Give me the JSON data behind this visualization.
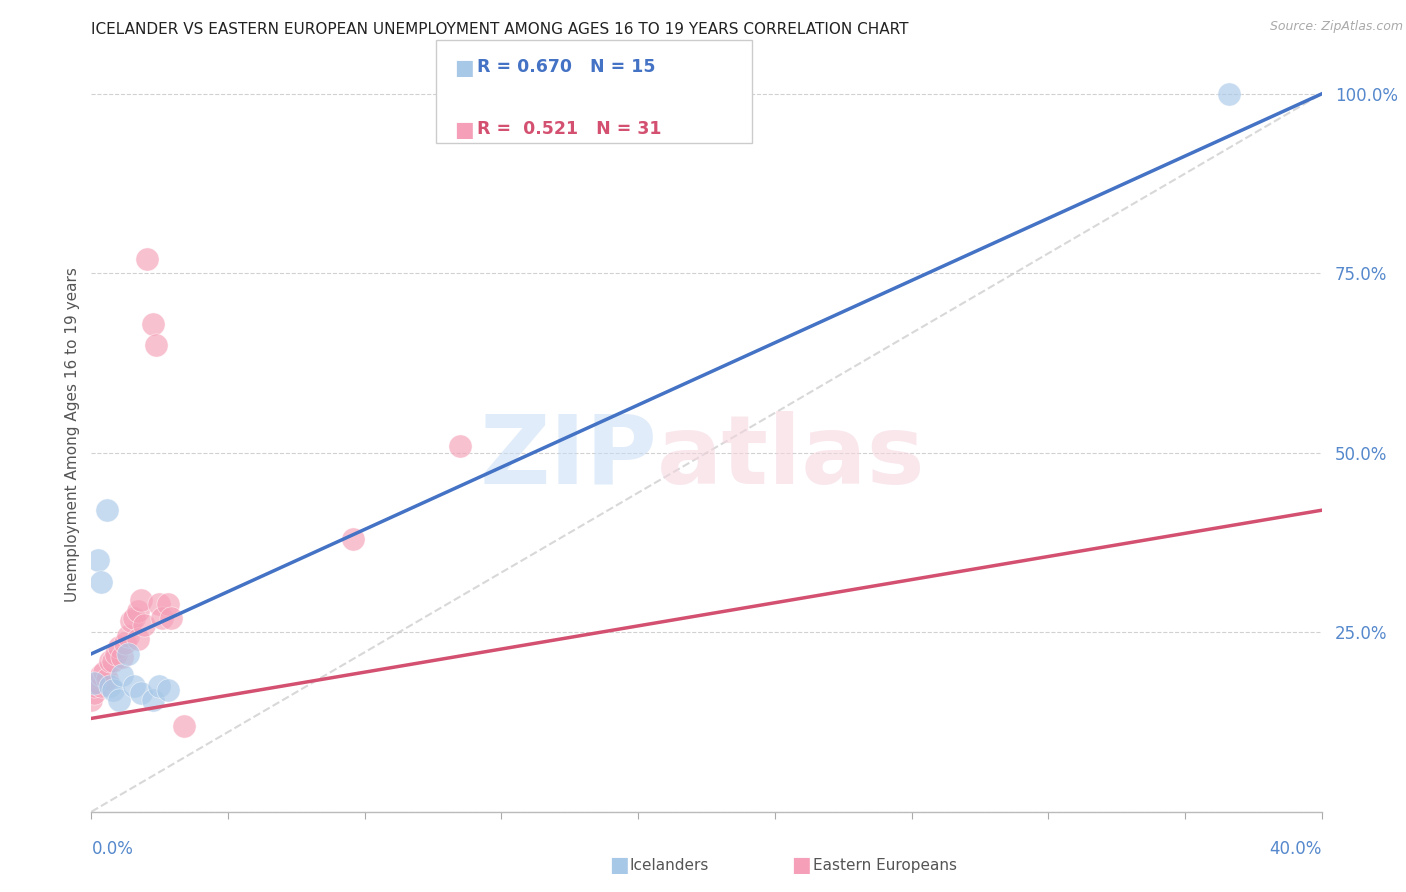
{
  "title": "ICELANDER VS EASTERN EUROPEAN UNEMPLOYMENT AMONG AGES 16 TO 19 YEARS CORRELATION CHART",
  "source": "Source: ZipAtlas.com",
  "ylabel": "Unemployment Among Ages 16 to 19 years",
  "x_min": 0.0,
  "x_max": 0.4,
  "y_min": 0.0,
  "y_max": 1.05,
  "ytick_values": [
    0.0,
    0.25,
    0.5,
    0.75,
    1.0
  ],
  "ytick_labels": [
    "",
    "25.0%",
    "50.0%",
    "75.0%",
    "100.0%"
  ],
  "iceland_R": 0.67,
  "iceland_N": 15,
  "eastern_R": 0.521,
  "eastern_N": 31,
  "iceland_color": "#a8c8e8",
  "eastern_color": "#f5a0b8",
  "line_iceland_color": "#4472c4",
  "line_eastern_color": "#d45070",
  "diagonal_color": "#c8c8c8",
  "iceland_line_x": [
    0.0,
    0.4
  ],
  "iceland_line_y": [
    0.22,
    1.0
  ],
  "eastern_line_x": [
    0.0,
    0.4
  ],
  "eastern_line_y": [
    0.13,
    0.42
  ],
  "iceland_points_x": [
    0.001,
    0.002,
    0.003,
    0.005,
    0.006,
    0.007,
    0.009,
    0.01,
    0.012,
    0.014,
    0.016,
    0.02,
    0.022,
    0.025,
    0.37
  ],
  "iceland_points_y": [
    0.18,
    0.35,
    0.32,
    0.42,
    0.175,
    0.17,
    0.155,
    0.19,
    0.22,
    0.175,
    0.165,
    0.155,
    0.175,
    0.17,
    1.0
  ],
  "eastern_points_x": [
    0.0,
    0.001,
    0.001,
    0.002,
    0.003,
    0.003,
    0.004,
    0.005,
    0.006,
    0.007,
    0.008,
    0.009,
    0.01,
    0.011,
    0.012,
    0.013,
    0.014,
    0.015,
    0.015,
    0.016,
    0.017,
    0.018,
    0.02,
    0.021,
    0.022,
    0.023,
    0.025,
    0.026,
    0.03,
    0.085,
    0.12
  ],
  "eastern_points_y": [
    0.155,
    0.165,
    0.175,
    0.18,
    0.175,
    0.19,
    0.195,
    0.185,
    0.21,
    0.21,
    0.22,
    0.23,
    0.215,
    0.235,
    0.245,
    0.265,
    0.27,
    0.28,
    0.24,
    0.295,
    0.26,
    0.77,
    0.68,
    0.65,
    0.29,
    0.27,
    0.29,
    0.27,
    0.12,
    0.38,
    0.51
  ]
}
